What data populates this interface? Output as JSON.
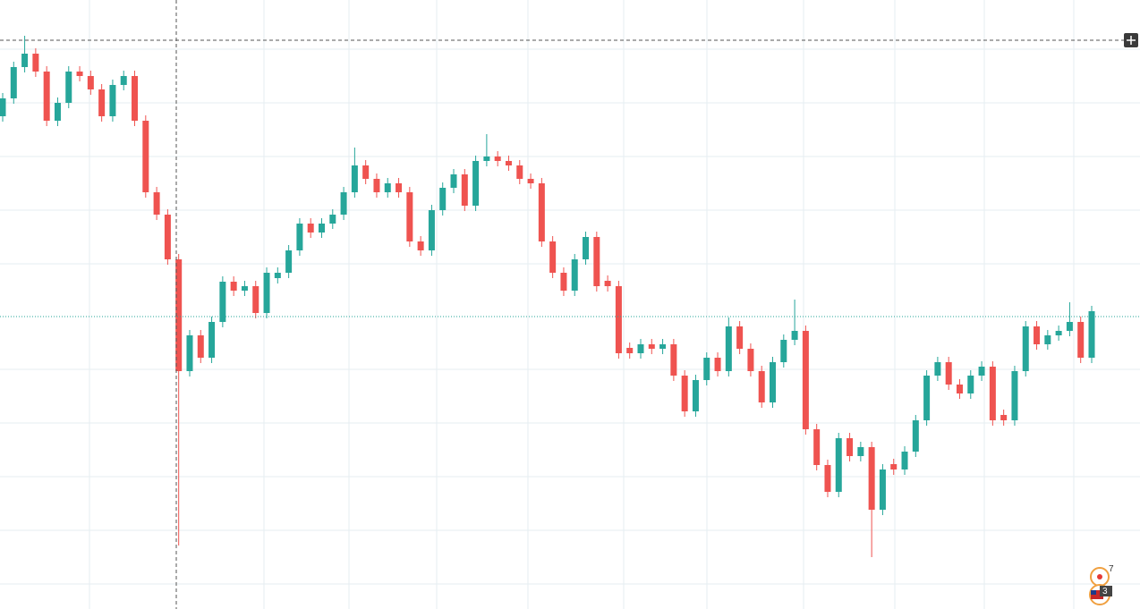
{
  "chart_data": {
    "type": "candlestick",
    "ylim": [
      -1,
      680
    ],
    "up_color": "#26a69a",
    "down_color": "#ef5350",
    "series": [
      {
        "open": [
          550,
          570,
          605,
          620,
          600,
          545,
          565,
          600,
          595,
          580,
          550,
          585,
          595,
          545,
          465,
          440,
          390,
          265,
          305,
          280,
          320,
          365,
          355,
          360,
          330,
          369,
          375,
          400,
          430,
          420,
          430,
          440,
          465,
          495,
          480,
          465,
          475,
          465,
          410,
          400,
          445,
          470,
          485,
          450,
          500,
          505,
          500,
          495,
          480,
          475,
          410,
          375,
          355,
          390,
          415,
          366,
          360,
          291,
          285,
          295,
          290,
          295,
          260,
          220,
          255,
          280,
          265,
          315,
          290,
          265,
          230,
          275,
          300,
          310,
          200,
          160,
          130,
          190,
          170,
          180,
          110,
          161,
          155,
          175,
          210,
          260,
          275,
          250,
          240,
          260,
          270,
          216,
          210,
          265,
          315,
          295,
          305,
          310,
          320,
          280
        ],
        "high": [
          576,
          611,
          640,
          626,
          606,
          571,
          606,
          606,
          601,
          586,
          591,
          601,
          601,
          551,
          471,
          446,
          396,
          311,
          311,
          326,
          371,
          371,
          366,
          366,
          381,
          381,
          406,
          436,
          436,
          436,
          446,
          471,
          515,
          501,
          486,
          481,
          481,
          471,
          416,
          451,
          476,
          491,
          491,
          506,
          530,
          511,
          506,
          501,
          486,
          481,
          416,
          381,
          396,
          421,
          421,
          372,
          366,
          297,
          301,
          301,
          301,
          301,
          266,
          261,
          286,
          286,
          325,
          321,
          296,
          271,
          281,
          306,
          345,
          316,
          206,
          166,
          196,
          196,
          186,
          186,
          161,
          167,
          181,
          216,
          266,
          281,
          281,
          256,
          266,
          276,
          276,
          222,
          271,
          321,
          321,
          311,
          316,
          342,
          326,
          338
        ],
        "low": [
          544,
          564,
          599,
          594,
          539,
          539,
          559,
          589,
          574,
          544,
          544,
          579,
          539,
          459,
          434,
          384,
          70,
          259,
          274,
          274,
          314,
          349,
          349,
          324,
          324,
          363,
          369,
          394,
          414,
          414,
          424,
          434,
          459,
          474,
          459,
          459,
          459,
          404,
          394,
          394,
          439,
          464,
          444,
          444,
          494,
          494,
          489,
          474,
          469,
          404,
          369,
          349,
          349,
          384,
          354,
          354,
          279,
          279,
          279,
          284,
          284,
          254,
          214,
          214,
          249,
          259,
          259,
          284,
          259,
          224,
          224,
          269,
          294,
          194,
          154,
          124,
          124,
          164,
          164,
          57,
          104,
          149,
          149,
          169,
          204,
          254,
          244,
          234,
          234,
          254,
          204,
          204,
          204,
          259,
          289,
          289,
          299,
          304,
          274,
          274
        ],
        "close": [
          570,
          605,
          620,
          600,
          545,
          565,
          600,
          595,
          580,
          550,
          585,
          595,
          545,
          465,
          440,
          390,
          265,
          305,
          280,
          320,
          365,
          355,
          360,
          330,
          375,
          375,
          400,
          430,
          420,
          430,
          440,
          465,
          495,
          480,
          465,
          475,
          465,
          410,
          400,
          445,
          470,
          485,
          450,
          500,
          505,
          500,
          495,
          480,
          475,
          410,
          375,
          355,
          390,
          415,
          360,
          360,
          285,
          285,
          295,
          290,
          295,
          260,
          220,
          255,
          280,
          265,
          315,
          290,
          265,
          230,
          275,
          300,
          310,
          200,
          160,
          130,
          190,
          170,
          180,
          110,
          155,
          155,
          175,
          210,
          260,
          275,
          250,
          240,
          260,
          270,
          210,
          210,
          265,
          315,
          295,
          305,
          310,
          320,
          280,
          332
        ]
      }
    ]
  },
  "ui": {
    "badges": [
      "7",
      "3"
    ]
  }
}
